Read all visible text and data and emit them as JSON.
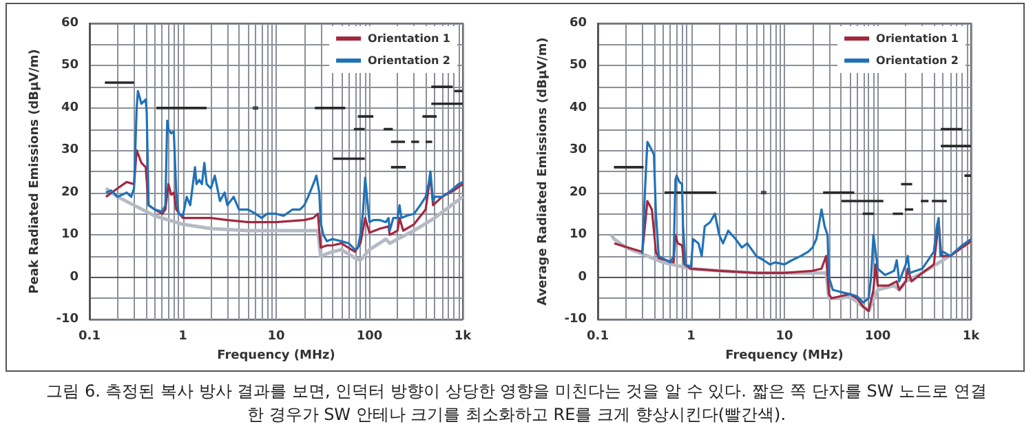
{
  "chart_data": [
    {
      "type": "line",
      "xlabel": "Frequency (MHz)",
      "ylabel": "Peak Radiated Emissions (dBμV/m)",
      "log": "x",
      "grid": true,
      "legend": "top right",
      "marker": "none",
      "line_style": "solid",
      "xlim": [
        0.1,
        1000
      ],
      "ylim": [
        -10,
        60
      ],
      "xticks": [
        {
          "value": 0.1,
          "label": "0.1"
        },
        {
          "value": 0.2,
          "label": null
        },
        {
          "value": 0.3,
          "label": null
        },
        {
          "value": 0.4,
          "label": null
        },
        {
          "value": 0.5,
          "label": null
        },
        {
          "value": 0.6,
          "label": null
        },
        {
          "value": 0.7,
          "label": null
        },
        {
          "value": 0.8,
          "label": null
        },
        {
          "value": 0.9,
          "label": null
        },
        1,
        {
          "value": 2,
          "label": null
        },
        {
          "value": 3,
          "label": null
        },
        {
          "value": 4,
          "label": null
        },
        {
          "value": 5,
          "label": null
        },
        {
          "value": 6,
          "label": null
        },
        {
          "value": 7,
          "label": null
        },
        {
          "value": 8,
          "label": null
        },
        {
          "value": 9,
          "label": null
        },
        10,
        {
          "value": 20,
          "label": null
        },
        {
          "value": 30,
          "label": null
        },
        {
          "value": 40,
          "label": null
        },
        {
          "value": 50,
          "label": null
        },
        {
          "value": 60,
          "label": null
        },
        {
          "value": 70,
          "label": null
        },
        {
          "value": 80,
          "label": null
        },
        {
          "value": 90,
          "label": null
        },
        100,
        {
          "value": 200,
          "label": null
        },
        {
          "value": 300,
          "label": null
        },
        {
          "value": 400,
          "label": null
        },
        {
          "value": 500,
          "label": null
        },
        {
          "value": 600,
          "label": null
        },
        {
          "value": 700,
          "label": null
        },
        {
          "value": 800,
          "label": null
        },
        {
          "value": 900,
          "label": null
        },
        {
          "value": 1000,
          "label": "1k"
        }
      ],
      "yticks": [
        -10,
        {
          "value": -5,
          "label": null
        },
        0,
        {
          "value": 5,
          "label": null
        },
        10,
        {
          "value": 15,
          "label": null
        },
        20,
        {
          "value": 25,
          "label": null
        },
        30,
        {
          "value": 35,
          "label": null
        },
        40,
        {
          "value": 45,
          "label": null
        },
        50,
        {
          "value": 55,
          "label": null
        },
        60
      ],
      "series": [
        {
          "color": "#b5bac4",
          "x": [
            0.15,
            0.2,
            0.3,
            0.5,
            1,
            2,
            5,
            10,
            20,
            28,
            30,
            40,
            50,
            70,
            80,
            100,
            150,
            165,
            200,
            300,
            500,
            1000
          ],
          "values": [
            21,
            19,
            17,
            14.5,
            12.5,
            11.5,
            11,
            11,
            11,
            11,
            5,
            6,
            6.5,
            4.5,
            4,
            6.5,
            9,
            8,
            9,
            11,
            14,
            19
          ]
        },
        {
          "name": "Orientation 1",
          "color": "#a3283f",
          "x": [
            0.15,
            0.2,
            0.25,
            0.3,
            0.32,
            0.36,
            0.4,
            0.43,
            0.5,
            0.6,
            0.65,
            0.7,
            0.75,
            0.8,
            0.85,
            1,
            2,
            3,
            5,
            10,
            20,
            25,
            28,
            30,
            35,
            40,
            50,
            70,
            80,
            90,
            100,
            130,
            160,
            165,
            200,
            210,
            230,
            300,
            400,
            450,
            480,
            600,
            800,
            1000
          ],
          "values": [
            19,
            21,
            22.5,
            22,
            30,
            27,
            26,
            17,
            16,
            15,
            16,
            22,
            19.5,
            20,
            16,
            14,
            14,
            13.5,
            13,
            13,
            13.5,
            14,
            15,
            7,
            7.5,
            7.5,
            8,
            6,
            8,
            14,
            10.5,
            11.5,
            12,
            10,
            11,
            14,
            11,
            12.5,
            16,
            24,
            17,
            19,
            20.5,
            22
          ]
        },
        {
          "name": "Orientation 2",
          "color": "#1f72b8",
          "x": [
            0.15,
            0.17,
            0.2,
            0.25,
            0.28,
            0.3,
            0.32,
            0.33,
            0.36,
            0.4,
            0.41,
            0.43,
            0.5,
            0.6,
            0.65,
            0.68,
            0.7,
            0.75,
            0.8,
            0.85,
            0.9,
            1,
            1.1,
            1.2,
            1.35,
            1.4,
            1.5,
            1.6,
            1.7,
            1.8,
            2,
            2.2,
            2.5,
            2.8,
            3,
            3.5,
            4,
            5,
            6,
            7,
            8,
            10,
            12,
            15,
            18,
            20,
            22,
            25,
            27,
            29,
            30,
            32,
            35,
            40,
            50,
            60,
            70,
            75,
            80,
            85,
            90,
            95,
            100,
            110,
            130,
            150,
            160,
            165,
            180,
            200,
            210,
            220,
            250,
            300,
            350,
            400,
            430,
            450,
            480,
            500,
            600,
            700,
            800,
            900,
            1000
          ],
          "values": [
            20,
            20.5,
            19,
            20,
            19,
            21,
            40,
            44,
            41,
            42,
            39,
            17,
            16,
            15.5,
            17,
            37,
            35,
            34,
            34.5,
            20,
            15,
            14.5,
            19,
            17,
            26,
            22,
            23,
            22,
            27,
            22,
            21,
            24,
            18,
            20,
            17,
            19,
            16,
            16,
            15,
            14,
            15,
            15,
            14.5,
            16,
            16,
            17,
            19,
            22,
            24,
            20,
            13,
            10,
            8.5,
            9,
            8.5,
            8,
            6.5,
            7,
            10,
            15,
            23.5,
            18,
            13,
            13.5,
            13.5,
            13,
            14,
            11,
            14,
            14,
            17,
            14,
            14.5,
            15,
            17,
            19,
            22,
            25,
            18,
            19,
            19,
            20,
            21,
            22,
            22.5
          ]
        },
        {
          "color": "#2a2a2a",
          "x": [
            0.146,
            0.3
          ],
          "values": [
            46,
            46
          ]
        },
        {
          "color": "#2a2a2a",
          "x": [
            0.52,
            1.8
          ],
          "values": [
            40,
            40
          ]
        },
        {
          "color": "#2a2a2a",
          "x": [
            26,
            55
          ],
          "values": [
            40,
            40
          ]
        },
        {
          "color": "#2a2a2a",
          "x": [
            41,
            89
          ],
          "values": [
            28,
            28
          ]
        },
        {
          "color": "#2a2a2a",
          "x": [
            68,
            89
          ],
          "values": [
            35,
            35
          ]
        },
        {
          "color": "#2a2a2a",
          "x": [
            75,
            110
          ],
          "values": [
            38,
            38
          ]
        },
        {
          "color": "#2a2a2a",
          "x": [
            142,
            178
          ],
          "values": [
            35,
            35
          ]
        },
        {
          "color": "#2a2a2a",
          "x": [
            170,
            240
          ],
          "values": [
            32,
            32
          ]
        },
        {
          "color": "#2a2a2a",
          "x": [
            280,
            340
          ],
          "values": [
            32,
            32
          ]
        },
        {
          "color": "#2a2a2a",
          "x": [
            400,
            470
          ],
          "values": [
            32,
            32
          ]
        },
        {
          "color": "#2a2a2a",
          "x": [
            170,
            245
          ],
          "values": [
            26,
            26
          ]
        },
        {
          "color": "#2a2a2a",
          "x": [
            370,
            525
          ],
          "values": [
            38,
            38
          ]
        },
        {
          "color": "#2a2a2a",
          "x": [
            460,
            780
          ],
          "values": [
            45,
            45
          ]
        },
        {
          "color": "#2a2a2a",
          "x": [
            810,
            1000
          ],
          "values": [
            44,
            44
          ]
        },
        {
          "color": "#2a2a2a",
          "x": [
            460,
            1000
          ],
          "values": [
            41,
            41
          ]
        },
        {
          "type": "scatter",
          "marker": "square",
          "color": "#2a2a2a",
          "x": [
            6
          ],
          "values": [
            40
          ]
        }
      ],
      "annotations": [
        "그림 6. 측정된 복사 방사 결과를 보면, 인덕터 방향이 상당한 영향을 미친다는 것을 알 수 있다. 짧은 쪽 단자를 SW 노드로 연결한 경우가 SW 안테나 크기를 최소화하고 RE를 크게 향상시킨다(빨간색)."
      ]
    },
    {
      "type": "line",
      "xlabel": "Frequency (MHz)",
      "ylabel": "Average Radiated Emissions (dBμV/m)",
      "log": "x",
      "grid": true,
      "legend": "top right",
      "marker": "none",
      "line_style": "solid",
      "xlim": [
        0.1,
        1000
      ],
      "ylim": [
        -10,
        60
      ],
      "xticks": [
        {
          "value": 0.1,
          "label": "0.1"
        },
        {
          "value": 0.2,
          "label": null
        },
        {
          "value": 0.3,
          "label": null
        },
        {
          "value": 0.4,
          "label": null
        },
        {
          "value": 0.5,
          "label": null
        },
        {
          "value": 0.6,
          "label": null
        },
        {
          "value": 0.7,
          "label": null
        },
        {
          "value": 0.8,
          "label": null
        },
        {
          "value": 0.9,
          "label": null
        },
        1,
        {
          "value": 2,
          "label": null
        },
        {
          "value": 3,
          "label": null
        },
        {
          "value": 4,
          "label": null
        },
        {
          "value": 5,
          "label": null
        },
        {
          "value": 6,
          "label": null
        },
        {
          "value": 7,
          "label": null
        },
        {
          "value": 8,
          "label": null
        },
        {
          "value": 9,
          "label": null
        },
        10,
        {
          "value": 20,
          "label": null
        },
        {
          "value": 30,
          "label": null
        },
        {
          "value": 40,
          "label": null
        },
        {
          "value": 50,
          "label": null
        },
        {
          "value": 60,
          "label": null
        },
        {
          "value": 70,
          "label": null
        },
        {
          "value": 80,
          "label": null
        },
        {
          "value": 90,
          "label": null
        },
        100,
        {
          "value": 200,
          "label": null
        },
        {
          "value": 300,
          "label": null
        },
        {
          "value": 400,
          "label": null
        },
        {
          "value": 500,
          "label": null
        },
        {
          "value": 600,
          "label": null
        },
        {
          "value": 700,
          "label": null
        },
        {
          "value": 800,
          "label": null
        },
        {
          "value": 900,
          "label": null
        },
        {
          "value": 1000,
          "label": "1k"
        }
      ],
      "yticks": [
        -10,
        {
          "value": -5,
          "label": null
        },
        0,
        {
          "value": 5,
          "label": null
        },
        10,
        {
          "value": 15,
          "label": null
        },
        20,
        {
          "value": 25,
          "label": null
        },
        30,
        {
          "value": 35,
          "label": null
        },
        40,
        {
          "value": 45,
          "label": null
        },
        50,
        {
          "value": 55,
          "label": null
        },
        60
      ],
      "series": [
        {
          "color": "#b5bac4",
          "x": [
            0.14,
            0.15,
            0.2,
            0.3,
            0.5,
            1,
            2,
            5,
            10,
            28,
            30,
            40,
            50,
            70,
            80,
            100,
            150,
            170,
            200,
            300,
            500,
            1000
          ],
          "values": [
            10,
            9,
            7,
            5.5,
            3.5,
            2,
            1.5,
            1,
            1,
            1,
            -5,
            -5,
            -4.5,
            -7,
            -8,
            -3,
            -2,
            -3,
            -1,
            1,
            4,
            8.5
          ]
        },
        {
          "name": "Orientation 1",
          "color": "#a3283f",
          "x": [
            0.15,
            0.3,
            0.32,
            0.34,
            0.38,
            0.42,
            0.45,
            0.65,
            0.68,
            0.72,
            0.8,
            0.85,
            1,
            2,
            5,
            10,
            20,
            25,
            28,
            30,
            32,
            40,
            50,
            60,
            70,
            80,
            90,
            95,
            100,
            130,
            160,
            170,
            200,
            210,
            230,
            300,
            400,
            450,
            480,
            600,
            800,
            1000
          ],
          "values": [
            8,
            6,
            12,
            18,
            16,
            6,
            4.5,
            3.5,
            10,
            8,
            7.5,
            3,
            2,
            1.5,
            1,
            1,
            1.5,
            2,
            5,
            -4,
            -5,
            -4.5,
            -4,
            -5,
            -7,
            -8,
            -3,
            3,
            -2,
            -2,
            -1,
            -3,
            -1,
            2,
            -1,
            1,
            3,
            13,
            5,
            5,
            7,
            8.5
          ]
        },
        {
          "name": "Orientation 2",
          "color": "#1f72b8",
          "x": [
            0.3,
            0.32,
            0.34,
            0.36,
            0.4,
            0.42,
            0.45,
            0.6,
            0.65,
            0.68,
            0.7,
            0.75,
            0.8,
            0.82,
            0.87,
            1,
            1.05,
            1.2,
            1.3,
            1.4,
            1.6,
            1.8,
            2,
            2.2,
            2.5,
            3,
            3.5,
            4,
            5,
            6,
            7,
            8,
            10,
            12,
            15,
            18,
            20,
            22,
            25,
            27,
            29,
            30,
            33,
            40,
            50,
            60,
            70,
            80,
            85,
            90,
            95,
            100,
            120,
            150,
            160,
            170,
            200,
            210,
            220,
            300,
            400,
            430,
            450,
            470,
            500,
            600,
            800,
            1000
          ],
          "values": [
            5.5,
            20,
            32,
            31,
            29,
            15,
            5,
            3.5,
            5,
            23,
            24,
            22.5,
            22,
            12,
            3,
            2.5,
            9,
            8,
            5,
            12,
            13,
            15,
            10,
            8,
            11,
            9,
            7,
            8,
            5,
            4,
            3,
            3.5,
            3,
            4,
            5,
            6,
            7,
            9,
            16,
            12,
            10,
            0,
            -3,
            -3.5,
            -4,
            -4.5,
            -6,
            -5,
            0,
            10,
            6,
            2,
            0.5,
            1.5,
            4,
            -1,
            3,
            5,
            1,
            2,
            6,
            12,
            14,
            5,
            6,
            5,
            7.5,
            9
          ]
        },
        {
          "color": "#2a2a2a",
          "x": [
            0.149,
            0.31
          ],
          "values": [
            26,
            26
          ]
        },
        {
          "color": "#2a2a2a",
          "x": [
            0.52,
            1.87
          ],
          "values": [
            20,
            20
          ]
        },
        {
          "color": "#2a2a2a",
          "x": [
            26,
            56
          ],
          "values": [
            20,
            20
          ]
        },
        {
          "color": "#2a2a2a",
          "x": [
            41,
            115
          ],
          "values": [
            18,
            18
          ]
        },
        {
          "color": "#2a2a2a",
          "x": [
            69,
            91
          ],
          "values": [
            15,
            15
          ]
        },
        {
          "color": "#2a2a2a",
          "x": [
            145,
            186
          ],
          "values": [
            15,
            15
          ]
        },
        {
          "color": "#2a2a2a",
          "x": [
            178,
            234
          ],
          "values": [
            22,
            22
          ]
        },
        {
          "color": "#2a2a2a",
          "x": [
            195,
            240
          ],
          "values": [
            16,
            16
          ]
        },
        {
          "color": "#2a2a2a",
          "x": [
            290,
            350
          ],
          "values": [
            18,
            18
          ]
        },
        {
          "color": "#2a2a2a",
          "x": [
            380,
            550
          ],
          "values": [
            18,
            18
          ]
        },
        {
          "color": "#2a2a2a",
          "x": [
            475,
            800
          ],
          "values": [
            35,
            35
          ]
        },
        {
          "color": "#2a2a2a",
          "x": [
            475,
            1000
          ],
          "values": [
            31,
            31
          ]
        },
        {
          "color": "#2a2a2a",
          "x": [
            850,
            1000
          ],
          "values": [
            24,
            24
          ]
        },
        {
          "type": "scatter",
          "marker": "square",
          "color": "#2a2a2a",
          "x": [
            6
          ],
          "values": [
            20
          ]
        }
      ]
    }
  ]
}
